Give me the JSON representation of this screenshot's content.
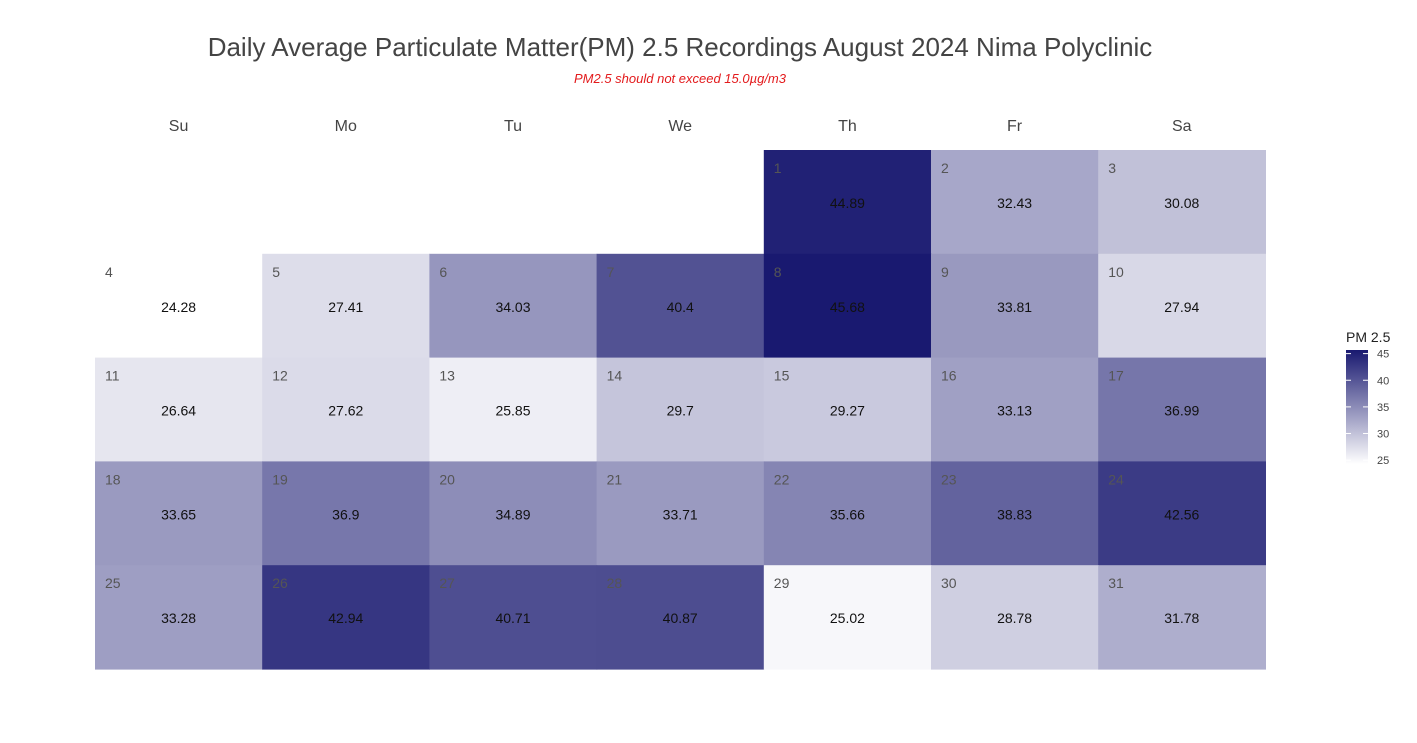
{
  "chart_data": {
    "type": "heatmap",
    "title": "Daily Average Particulate Matter(PM) 2.5 Recordings August 2024 Nima Polyclinic",
    "subtitle": "PM2.5 should not exceed 15.0µg/m3",
    "weekdays": [
      "Su",
      "Mo",
      "Tu",
      "We",
      "Th",
      "Fr",
      "Sa"
    ],
    "first_weekday_index": 4,
    "days": [
      1,
      2,
      3,
      4,
      5,
      6,
      7,
      8,
      9,
      10,
      11,
      12,
      13,
      14,
      15,
      16,
      17,
      18,
      19,
      20,
      21,
      22,
      23,
      24,
      25,
      26,
      27,
      28,
      29,
      30,
      31
    ],
    "values": [
      44.89,
      32.43,
      30.08,
      24.28,
      27.41,
      34.03,
      40.4,
      45.68,
      33.81,
      27.94,
      26.64,
      27.62,
      25.85,
      29.7,
      29.27,
      33.13,
      36.99,
      33.65,
      36.9,
      34.89,
      33.71,
      35.66,
      38.83,
      42.56,
      33.28,
      42.94,
      40.71,
      40.87,
      25.02,
      28.78,
      31.78
    ],
    "legend": {
      "title": "PM 2.5",
      "ticks": [
        25,
        30,
        35,
        40,
        45
      ],
      "range": [
        24.28,
        45.68
      ],
      "placement": "right"
    },
    "colors": {
      "low": "#ffffff",
      "high": "#191970",
      "subtitle": "#e31a1c"
    }
  }
}
